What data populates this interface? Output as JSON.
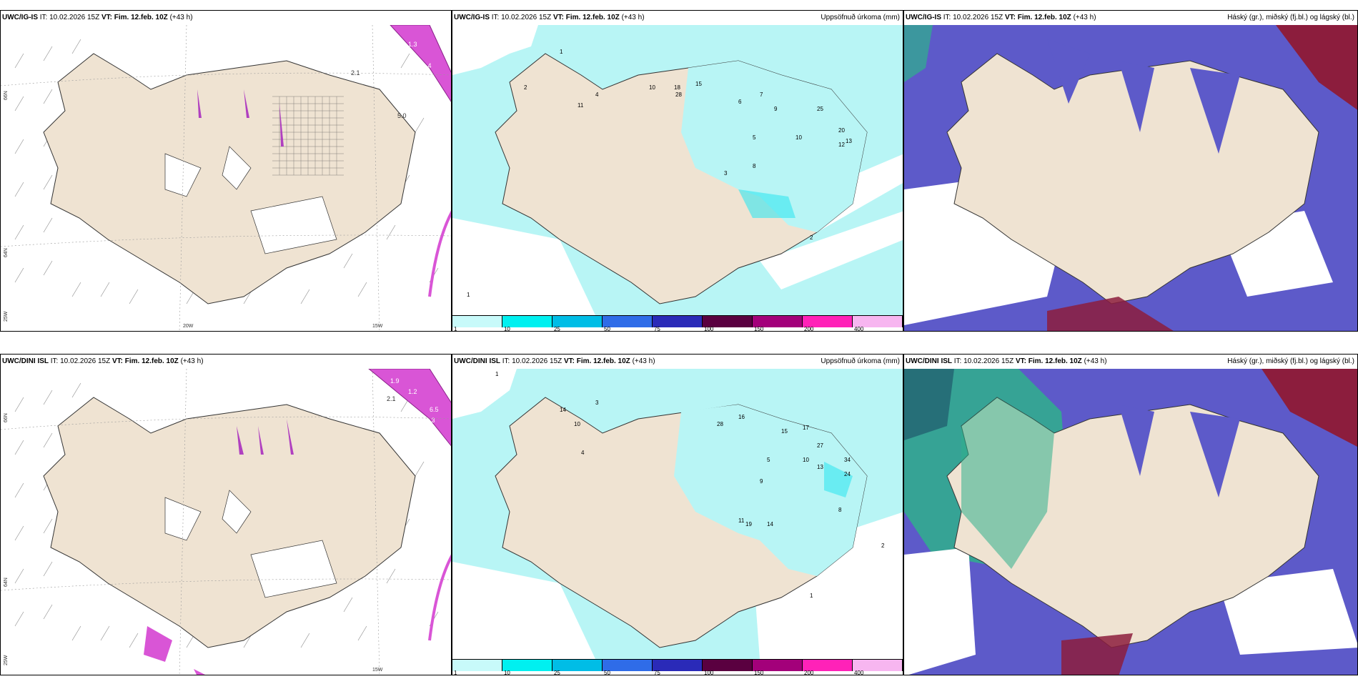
{
  "colors": {
    "land": "#efe3d2",
    "precip_light": "#b8f5f5",
    "precip_mid": "#33e6f0",
    "cloud_high_green": "#2fb08c",
    "cloud_mid_blue": "#5d5ac9",
    "cloud_low_dark": "#8c1d3d",
    "sea": "#ffffff"
  },
  "rows": [
    {
      "model": "UWC/IG-IS",
      "it_label": "IT:",
      "it_value": "10.02.2026 15Z",
      "vt_label": "VT:",
      "vt_value": "Fim. 12.feb. 10Z",
      "lead": "(+43 h)",
      "precip_title": "Uppsöfnuð úrkoma (mm)",
      "cloud_title": "Háský (gr.), miðský (fj.bl.) og lágský (bl.)",
      "wind_numbers": [
        "1.3",
        "1.4",
        "2.1",
        "5.0"
      ],
      "precip_numbers": [
        "1",
        "2",
        "4",
        "11",
        "10",
        "18",
        "28",
        "15",
        "20",
        "25",
        "12",
        "13",
        "10",
        "5",
        "3",
        "9",
        "8",
        "6",
        "7",
        "2",
        "1"
      ]
    },
    {
      "model": "UWC/DINI ISL",
      "it_label": "IT:",
      "it_value": "10.02.2026 15Z",
      "vt_label": "VT:",
      "vt_value": "Fim. 12.feb. 10Z",
      "lead": "(+43 h)",
      "precip_title": "Uppsöfnuð úrkoma (mm)",
      "cloud_title": "Háský (gr.), miðský (fj.bl.) og lágský (bl.)",
      "wind_numbers": [
        "1.9",
        "1.2",
        "2.1",
        "6.5",
        "1.3"
      ],
      "precip_numbers": [
        "1",
        "3",
        "4",
        "10",
        "14",
        "28",
        "16",
        "15",
        "17",
        "27",
        "34",
        "24",
        "13",
        "10",
        "14",
        "19",
        "11",
        "8",
        "9",
        "5",
        "2",
        "1"
      ]
    }
  ],
  "axis_labels": {
    "lat_top": "66N",
    "lat_mid": "64N",
    "lat_bottom": "25W",
    "lon_left": "20W",
    "lon_right": "15W"
  },
  "colorbar": {
    "ticks": [
      "1",
      "10",
      "25",
      "50",
      "75",
      "100",
      "150",
      "200",
      "400"
    ],
    "colors": [
      "#c8fafa",
      "#00f0f0",
      "#00bde6",
      "#2f6ce8",
      "#2a2ab8",
      "#5a0040",
      "#a3007a",
      "#ff22b8",
      "#f7b6f0"
    ]
  }
}
